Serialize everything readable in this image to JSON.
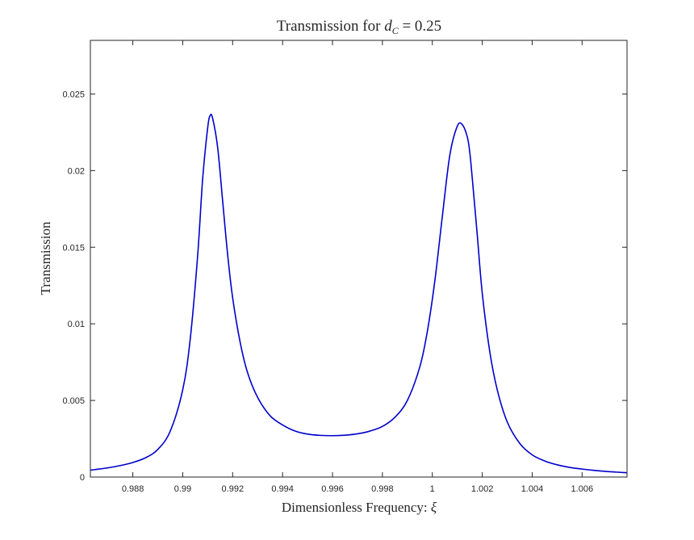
{
  "chart_data": {
    "type": "line",
    "title": "Transmission for d_C = 0.25",
    "title_parts": {
      "prefix": "Transmission for ",
      "var": "d",
      "sub": "C",
      "suffix": " = 0.25"
    },
    "xlabel_parts": {
      "prefix": "Dimensionless Frequency: ",
      "symbol": "ξ"
    },
    "ylabel": "Transmission",
    "xlim": [
      0.9863,
      1.0078
    ],
    "ylim": [
      0,
      0.0285
    ],
    "x_ticks": [
      0.988,
      0.99,
      0.992,
      0.994,
      0.996,
      0.998,
      1,
      1.002,
      1.004,
      1.006
    ],
    "x_tick_labels": [
      "0.988",
      "0.99",
      "0.992",
      "0.994",
      "0.996",
      "0.998",
      "1",
      "1.002",
      "1.004",
      "1.006"
    ],
    "y_ticks": [
      0,
      0.005,
      0.01,
      0.015,
      0.02,
      0.025
    ],
    "y_tick_labels": [
      "0",
      "0.005",
      "0.01",
      "0.015",
      "0.02",
      "0.025"
    ],
    "grid": false,
    "line_color": "#0000cc",
    "series": [
      {
        "x": [
          0.9863,
          0.987,
          0.9875,
          0.988,
          0.9885,
          0.989,
          0.9895,
          0.99,
          0.9903,
          0.9906,
          0.9908,
          0.991,
          0.9911,
          0.9912,
          0.9914,
          0.9916,
          0.9918,
          0.992,
          0.9923,
          0.9926,
          0.993,
          0.9935,
          0.994,
          0.9945,
          0.995,
          0.9955,
          0.996,
          0.9965,
          0.997,
          0.9975,
          0.998,
          0.9985,
          0.999,
          0.9995,
          0.9998,
          1.0001,
          1.0004,
          1.0007,
          1.001,
          1.0012,
          1.0014,
          1.0015,
          1.0016,
          1.0018,
          1.002,
          1.0023,
          1.0026,
          1.003,
          1.0035,
          1.004,
          1.0045,
          1.005,
          1.0055,
          1.006,
          1.0065,
          1.007,
          1.0078
        ],
        "y": [
          0.00045,
          0.0006,
          0.00075,
          0.00095,
          0.00125,
          0.0018,
          0.003,
          0.0057,
          0.009,
          0.0145,
          0.0195,
          0.0228,
          0.0236,
          0.0234,
          0.0215,
          0.018,
          0.0145,
          0.0117,
          0.0088,
          0.0068,
          0.0052,
          0.004,
          0.0034,
          0.003,
          0.0028,
          0.00272,
          0.0027,
          0.00273,
          0.00282,
          0.003,
          0.0033,
          0.0039,
          0.005,
          0.0072,
          0.0095,
          0.0128,
          0.017,
          0.021,
          0.0229,
          0.023,
          0.0222,
          0.0212,
          0.0195,
          0.0158,
          0.012,
          0.0082,
          0.0057,
          0.0036,
          0.0022,
          0.00145,
          0.00105,
          0.0008,
          0.00063,
          0.00052,
          0.00043,
          0.00036,
          0.00028
        ]
      }
    ]
  }
}
